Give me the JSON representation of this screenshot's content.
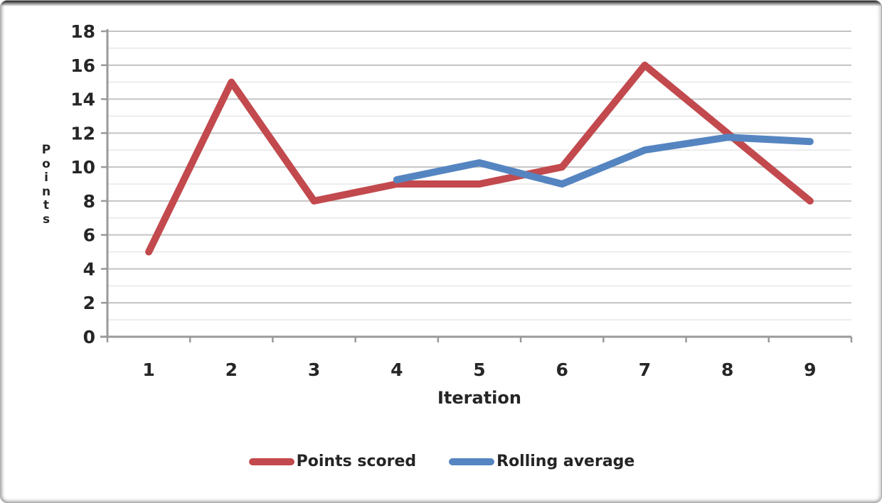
{
  "chart_data": {
    "type": "line",
    "title": "",
    "xlabel": "Iteration",
    "ylabel": "Points",
    "categories": [
      "1",
      "2",
      "3",
      "4",
      "5",
      "6",
      "7",
      "8",
      "9"
    ],
    "yticks": [
      0,
      2,
      4,
      6,
      8,
      10,
      12,
      14,
      16,
      18
    ],
    "ylim": [
      0,
      18
    ],
    "minor_ytick_step": 1,
    "grid": "horizontal-major-and-minor",
    "legend_position": "bottom-center",
    "series": [
      {
        "name": "Points scored",
        "color": "#c2494d",
        "values": [
          5,
          15,
          8,
          9,
          9,
          10,
          16,
          12,
          8
        ]
      },
      {
        "name": "Rolling average",
        "color": "#5585c1",
        "values": [
          null,
          null,
          null,
          9.25,
          10.25,
          9,
          11,
          11.75,
          11.5
        ]
      }
    ]
  },
  "colors": {
    "background": "#ffffff",
    "major_gridline": "#c4c4c4",
    "minor_gridline": "#e7e7e7",
    "axis_line": "#9a9a9a",
    "tick_text": "#262626",
    "card_border": "#ababab"
  }
}
